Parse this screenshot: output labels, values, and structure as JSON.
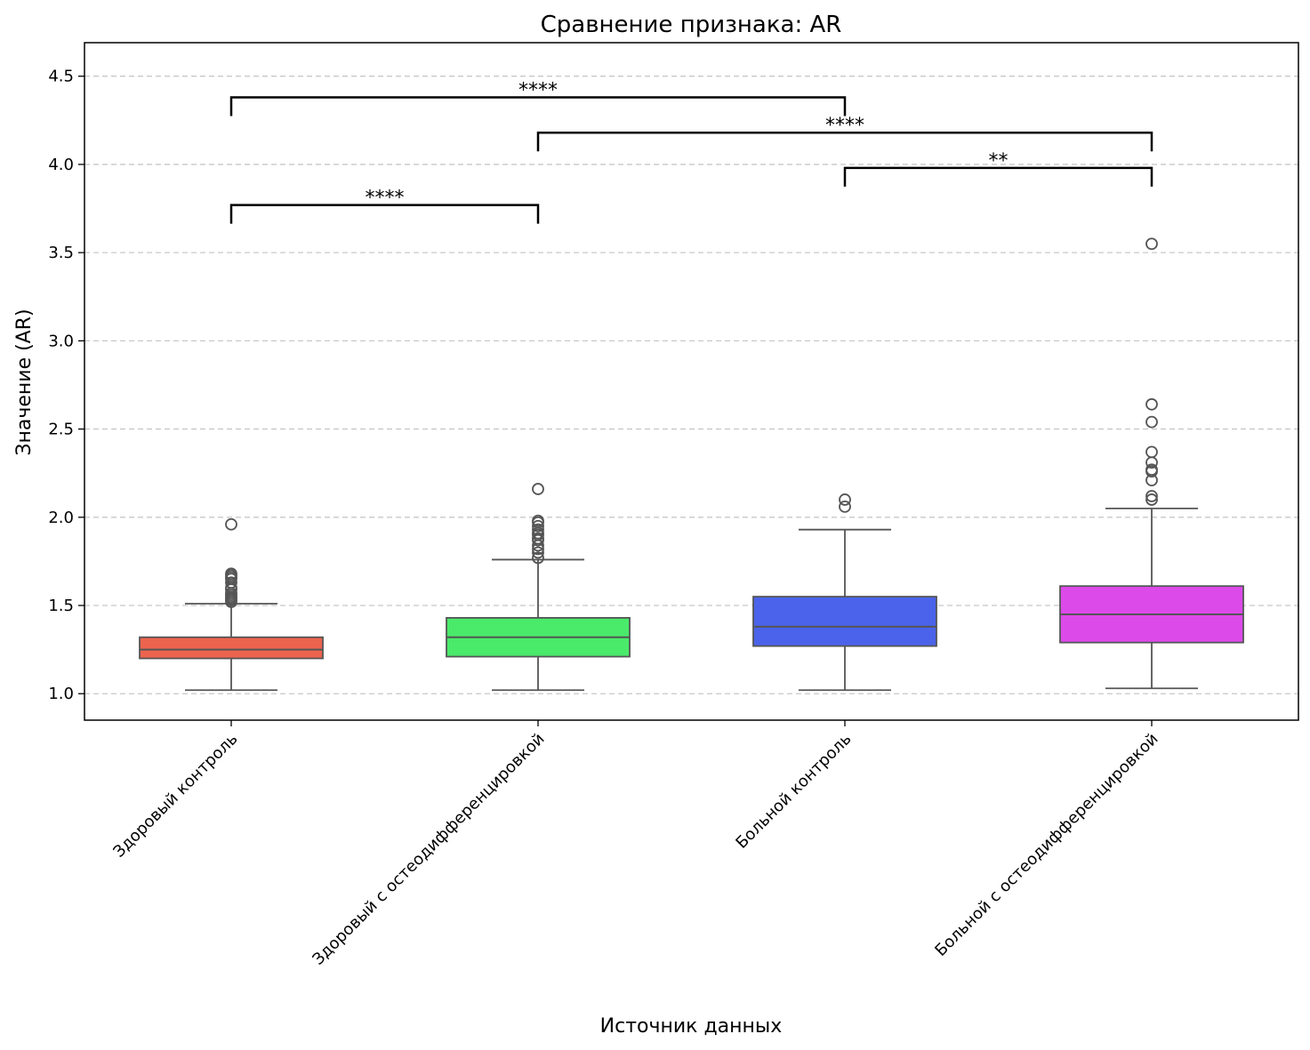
{
  "chart_data": {
    "type": "box",
    "title": "Сравнение признака: AR",
    "xlabel": "Источник данных",
    "ylabel": "Значение (AR)",
    "ylim": [
      0.85,
      4.69
    ],
    "yticks": [
      "1.0",
      "1.5",
      "2.0",
      "2.5",
      "3.0",
      "3.5",
      "4.0",
      "4.5"
    ],
    "grid": "horizontal-dashed",
    "categories": [
      "Здоровый контроль",
      "Здоровый с остеодифференцировкой",
      "Больной контроль",
      "Больной с остеодифференцировкой"
    ],
    "boxes": [
      {
        "whisker_low": 1.02,
        "q1": 1.2,
        "median": 1.25,
        "q3": 1.32,
        "whisker_high": 1.51,
        "color": "#ec634e",
        "outliers": [
          1.52,
          1.53,
          1.54,
          1.55,
          1.56,
          1.57,
          1.59,
          1.6,
          1.63,
          1.65,
          1.66,
          1.67,
          1.68,
          1.96
        ]
      },
      {
        "whisker_low": 1.02,
        "q1": 1.21,
        "median": 1.32,
        "q3": 1.43,
        "whisker_high": 1.76,
        "color": "#4aea6a",
        "outliers": [
          1.77,
          1.8,
          1.82,
          1.84,
          1.87,
          1.88,
          1.9,
          1.91,
          1.93,
          1.95,
          1.97,
          1.98,
          2.16
        ]
      },
      {
        "whisker_low": 1.02,
        "q1": 1.27,
        "median": 1.38,
        "q3": 1.55,
        "whisker_high": 1.93,
        "color": "#4a63ea",
        "outliers": [
          2.06,
          2.1
        ]
      },
      {
        "whisker_low": 1.03,
        "q1": 1.29,
        "median": 1.45,
        "q3": 1.61,
        "whisker_high": 2.05,
        "color": "#dd4aea",
        "outliers": [
          2.1,
          2.12,
          2.21,
          2.26,
          2.27,
          2.31,
          2.37,
          2.54,
          2.64,
          3.55
        ]
      }
    ],
    "significance": [
      {
        "from": 0,
        "to": 1,
        "y": 3.77,
        "label": "****"
      },
      {
        "from": 2,
        "to": 3,
        "y": 3.98,
        "label": "**"
      },
      {
        "from": 1,
        "to": 3,
        "y": 4.18,
        "label": "****"
      },
      {
        "from": 0,
        "to": 2,
        "y": 4.38,
        "label": "****"
      }
    ]
  },
  "colors": {
    "box_edge": "#555555",
    "grid": "#c8c8c8",
    "axis": "#000000"
  }
}
